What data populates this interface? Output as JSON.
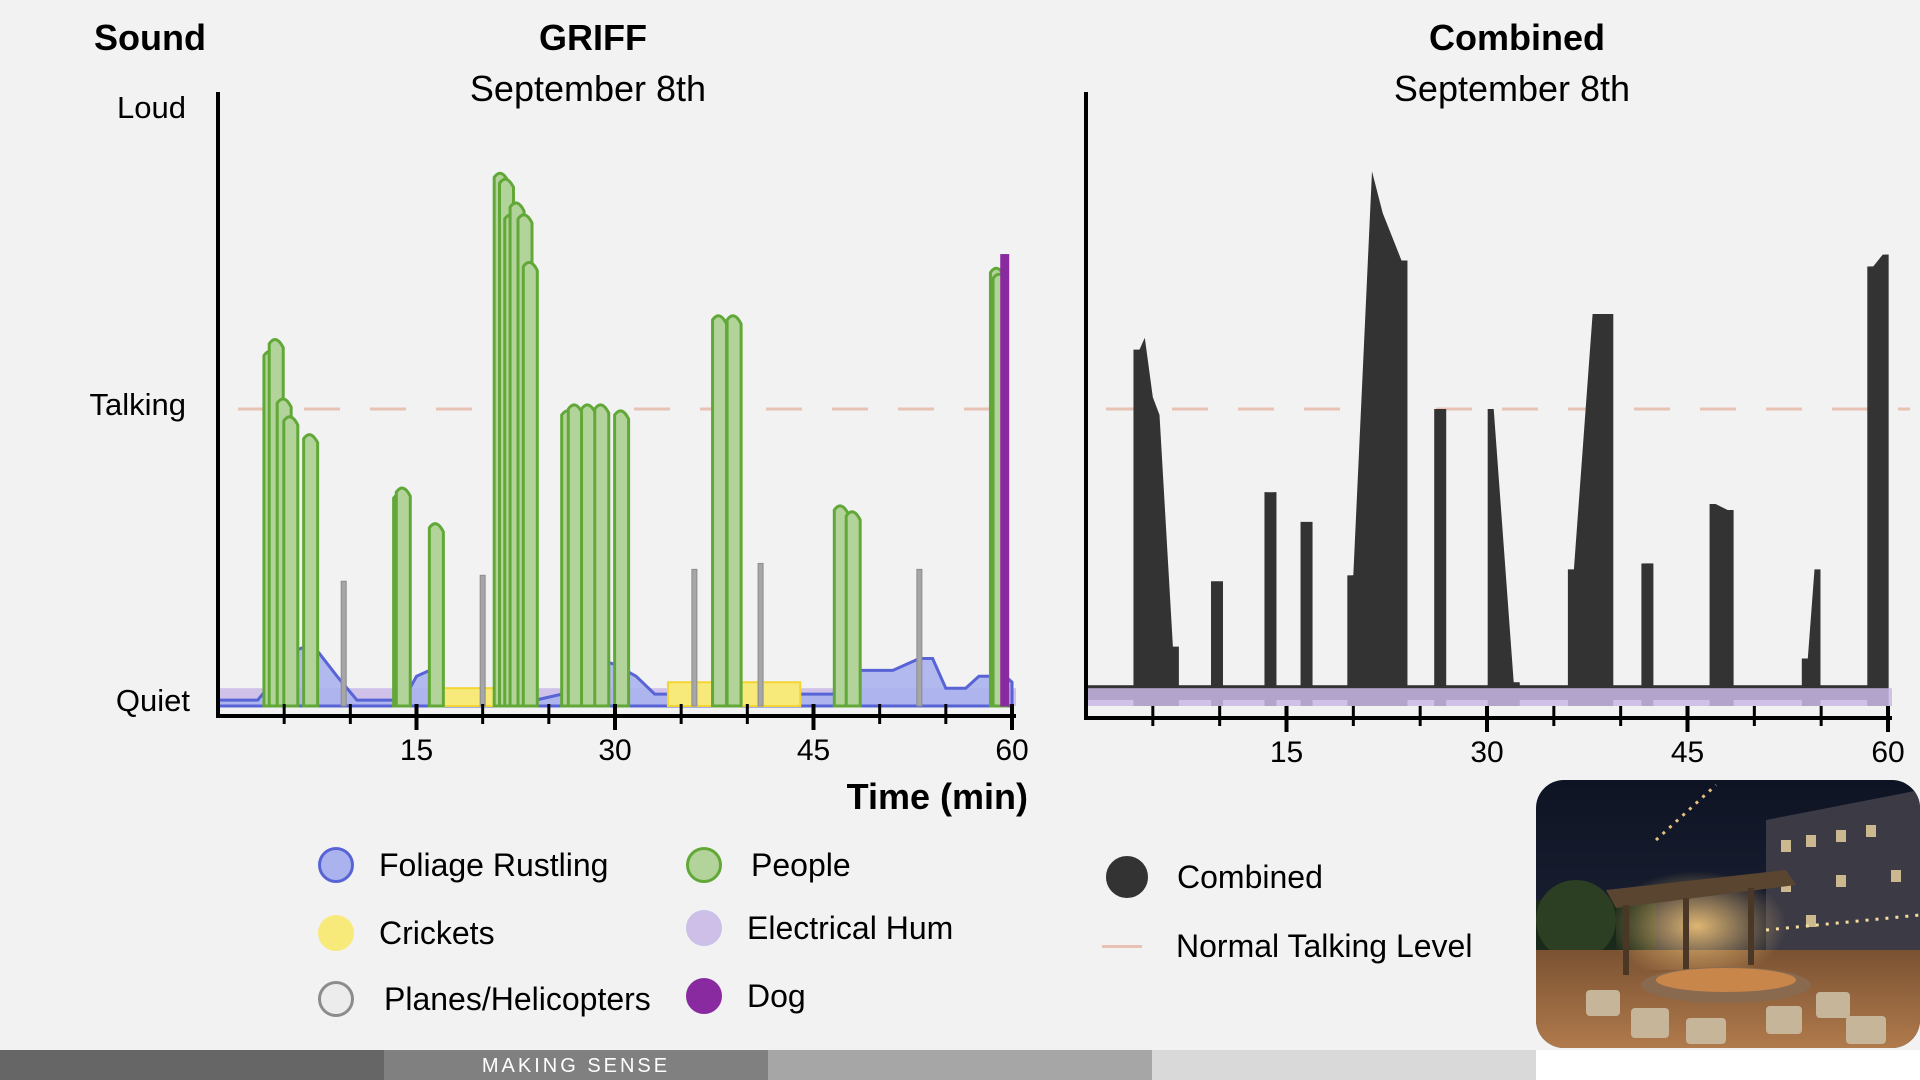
{
  "header": {
    "sound_label": "Sound"
  },
  "y_levels": {
    "loud": "Loud",
    "talking": "Talking",
    "quiet": "Quiet"
  },
  "chart_data": [
    {
      "type": "area",
      "title": "GRIFF",
      "subtitle": "September 8th",
      "xlabel": "Time (min)",
      "ylabel": "Sound",
      "xlim": [
        0,
        60
      ],
      "xticks": [
        15,
        30,
        45,
        60
      ],
      "ylim": [
        0,
        1
      ],
      "y_tick_labels": [
        "Quiet",
        "Talking",
        "Loud"
      ],
      "reference_line": {
        "name": "Normal Talking Level",
        "y": 0.5,
        "color": "#e8c2b4"
      },
      "series": [
        {
          "name": "Electrical Hum",
          "color": "#c9b9e6",
          "stroke": "#c9b9e6",
          "points": [
            [
              0,
              0.02
            ],
            [
              60,
              0.02
            ]
          ]
        },
        {
          "name": "Foliage Rustling",
          "color": "#aab3ee",
          "stroke": "#5864d6",
          "points": [
            [
              0,
              0.01
            ],
            [
              3,
              0.01
            ],
            [
              4.5,
              0.05
            ],
            [
              5.5,
              0.09
            ],
            [
              6.6,
              0.1
            ],
            [
              7.6,
              0.09
            ],
            [
              9,
              0.05
            ],
            [
              10.5,
              0.01
            ],
            [
              14,
              0.01
            ],
            [
              15,
              0.05
            ],
            [
              16,
              0.06
            ],
            [
              17,
              0.01
            ],
            [
              21,
              0.01
            ],
            [
              24,
              0.01
            ],
            [
              26,
              0.02
            ],
            [
              27.5,
              0.06
            ],
            [
              28.5,
              0.08
            ],
            [
              30,
              0.07
            ],
            [
              31.6,
              0.05
            ],
            [
              33,
              0.02
            ],
            [
              46.5,
              0.02
            ],
            [
              47.5,
              0.06
            ],
            [
              49,
              0.06
            ],
            [
              51,
              0.06
            ],
            [
              53,
              0.08
            ],
            [
              54,
              0.08
            ],
            [
              55,
              0.03
            ],
            [
              56.5,
              0.03
            ],
            [
              57.5,
              0.05
            ],
            [
              58.5,
              0.05
            ],
            [
              59.5,
              0.05
            ],
            [
              60,
              0.04
            ]
          ]
        },
        {
          "name": "Crickets",
          "color": "#f7e97a",
          "stroke": "#f3d632",
          "points": [
            [
              16.5,
              0.03
            ],
            [
              21,
              0.03
            ],
            [
              34,
              0.04
            ],
            [
              44,
              0.03
            ]
          ]
        },
        {
          "name": "People",
          "color": "#b2d49a",
          "stroke": "#62a838",
          "points": [
            [
              4,
              0.6
            ],
            [
              4.4,
              0.62
            ],
            [
              5,
              0.52
            ],
            [
              5.5,
              0.49
            ],
            [
              7,
              0.46
            ],
            [
              13.8,
              0.36
            ],
            [
              14,
              0.37
            ],
            [
              16.5,
              0.31
            ],
            [
              21.4,
              0.9
            ],
            [
              21.8,
              0.89
            ],
            [
              22.2,
              0.83
            ],
            [
              22.6,
              0.85
            ],
            [
              23.2,
              0.83
            ],
            [
              23.6,
              0.75
            ],
            [
              26.5,
              0.5
            ],
            [
              27,
              0.51
            ],
            [
              28,
              0.51
            ],
            [
              29,
              0.51
            ],
            [
              30.5,
              0.5
            ],
            [
              37.9,
              0.66
            ],
            [
              39,
              0.66
            ],
            [
              47.1,
              0.34
            ],
            [
              48,
              0.33
            ],
            [
              58.9,
              0.74
            ],
            [
              59.1,
              0.73
            ]
          ]
        },
        {
          "name": "Planes/Helicopters",
          "color": "#a6a6a6",
          "stroke": "#8c8c8c",
          "points": [
            [
              9.5,
              0.21
            ],
            [
              20,
              0.22
            ],
            [
              36,
              0.23
            ],
            [
              41,
              0.24
            ],
            [
              53,
              0.23
            ]
          ]
        },
        {
          "name": "Dog",
          "color": "#8a2aa0",
          "stroke": "#8a2aa0",
          "points": [
            [
              59.3,
              0.76
            ],
            [
              59.6,
              0.76
            ]
          ]
        }
      ]
    },
    {
      "type": "area",
      "title": "Combined",
      "subtitle": "September 8th",
      "xlim": [
        0,
        60
      ],
      "xticks": [
        15,
        30,
        45,
        60
      ],
      "ylim": [
        0,
        1
      ],
      "reference_line": {
        "name": "Normal Talking Level",
        "y": 0.5,
        "color": "#e8c2b4"
      },
      "series": [
        {
          "name": "Combined",
          "color": "#333333",
          "points": [
            [
              4,
              0.6
            ],
            [
              4.4,
              0.62
            ],
            [
              5,
              0.52
            ],
            [
              5.5,
              0.49
            ],
            [
              6.5,
              0.1
            ],
            [
              9.8,
              0.21
            ],
            [
              13.8,
              0.36
            ],
            [
              16.5,
              0.31
            ],
            [
              20,
              0.22
            ],
            [
              21.4,
              0.9
            ],
            [
              22.2,
              0.83
            ],
            [
              23.6,
              0.75
            ],
            [
              26.5,
              0.5
            ],
            [
              30.5,
              0.5
            ],
            [
              32,
              0.04
            ],
            [
              36.5,
              0.23
            ],
            [
              37.9,
              0.66
            ],
            [
              39,
              0.66
            ],
            [
              42,
              0.24
            ],
            [
              47.1,
              0.34
            ],
            [
              48,
              0.33
            ],
            [
              54,
              0.08
            ],
            [
              54.5,
              0.23
            ],
            [
              58.9,
              0.74
            ],
            [
              59.6,
              0.76
            ]
          ]
        },
        {
          "name": "Electrical Hum",
          "color": "#c9b9e6",
          "points": [
            [
              0,
              0.02
            ],
            [
              60,
              0.02
            ]
          ]
        }
      ]
    }
  ],
  "legend": {
    "items": [
      {
        "label": "Foliage Rustling",
        "fill": "#aab3ee",
        "stroke": "#5864d6"
      },
      {
        "label": "Crickets",
        "fill": "#f7e97a",
        "stroke": "#f7e97a"
      },
      {
        "label": "Planes/Helicopters",
        "fill": "#ececec",
        "stroke": "#8c8c8c"
      },
      {
        "label": "People",
        "fill": "#b2d49a",
        "stroke": "#62a838"
      },
      {
        "label": "Electrical Hum",
        "fill": "#cdbfe8",
        "stroke": "#cdbfe8"
      },
      {
        "label": "Dog",
        "fill": "#8a2aa0",
        "stroke": "#8a2aa0"
      },
      {
        "label": "Combined",
        "fill": "#333333",
        "stroke": "#333333"
      }
    ],
    "line_item": {
      "label": "Normal Talking Level",
      "color": "#e8c2b4"
    }
  },
  "photo": {
    "description_icon": "courtyard-photo"
  },
  "footer": {
    "label": "MAKING SENSE",
    "colors": [
      "#666666",
      "#808080",
      "#a6a6a6",
      "#d9d9d9",
      "#ffffff"
    ]
  }
}
